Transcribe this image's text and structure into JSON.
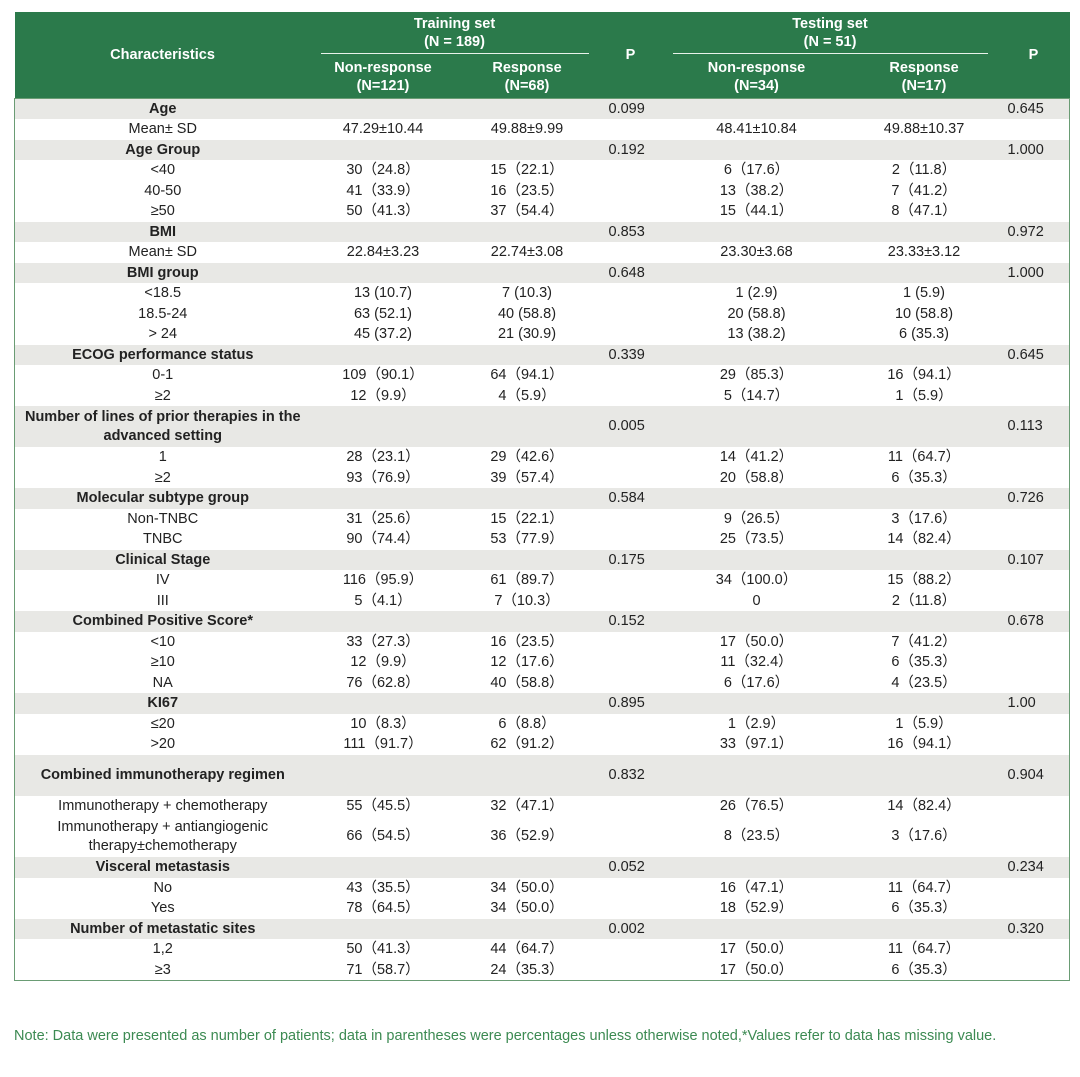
{
  "header": {
    "characteristics": "Characteristics",
    "training_set": "Training set",
    "training_n": "(N = 189)",
    "testing_set": "Testing set",
    "testing_n": "(N = 51)",
    "p": "P",
    "train_nr": "Non-response",
    "train_nr_n": "(N=121)",
    "train_r": "Response",
    "train_r_n": "(N=68)",
    "test_nr": "Non-response",
    "test_nr_n": "(N=34)",
    "test_r": "Response",
    "test_r_n": "(N=17)"
  },
  "colors": {
    "header_bg": "#2b7a4b",
    "group_bg": "#e8e8e5",
    "note": "#3c8a52"
  },
  "rows": [
    {
      "g": 1,
      "label": "Age",
      "c": [
        "",
        "",
        "0.099",
        "",
        "",
        "0.645"
      ]
    },
    {
      "label": "Mean± SD",
      "c": [
        "47.29±10.44",
        "49.88±9.99",
        "",
        "48.41±10.84",
        "49.88±10.37",
        ""
      ]
    },
    {
      "g": 1,
      "label": "Age Group",
      "c": [
        "",
        "",
        "0.192",
        "",
        "",
        "1.000"
      ]
    },
    {
      "label": "<40",
      "c": [
        "30（24.8）",
        "15（22.1）",
        "",
        "6（17.6）",
        "2（11.8）",
        ""
      ]
    },
    {
      "label": "40-50",
      "c": [
        "41（33.9）",
        "16（23.5）",
        "",
        "13（38.2）",
        "7（41.2）",
        ""
      ]
    },
    {
      "label": "≥50",
      "c": [
        "50（41.3）",
        "37（54.4）",
        "",
        "15（44.1）",
        "8（47.1）",
        ""
      ]
    },
    {
      "g": 1,
      "label": "BMI",
      "c": [
        "",
        "",
        "0.853",
        "",
        "",
        "0.972"
      ]
    },
    {
      "label": "Mean± SD",
      "c": [
        "22.84±3.23",
        "22.74±3.08",
        "",
        "23.30±3.68",
        "23.33±3.12",
        ""
      ]
    },
    {
      "g": 1,
      "label": "BMI group",
      "c": [
        "",
        "",
        "0.648",
        "",
        "",
        "1.000"
      ]
    },
    {
      "label": "<18.5",
      "c": [
        "13 (10.7)",
        "7 (10.3)",
        "",
        "1 (2.9)",
        "1 (5.9)",
        ""
      ]
    },
    {
      "label": "18.5-24",
      "c": [
        "63 (52.1)",
        "40 (58.8)",
        "",
        "20 (58.8)",
        "10 (58.8)",
        ""
      ]
    },
    {
      "label": "> 24",
      "c": [
        "45 (37.2)",
        "21 (30.9)",
        "",
        "13 (38.2)",
        "6 (35.3)",
        ""
      ]
    },
    {
      "g": 1,
      "label": "ECOG performance status",
      "c": [
        "",
        "",
        "0.339",
        "",
        "",
        "0.645"
      ]
    },
    {
      "label": "0-1",
      "c": [
        "109（90.1）",
        "64（94.1）",
        "",
        "29（85.3）",
        "16（94.1）",
        ""
      ]
    },
    {
      "label": "≥2",
      "c": [
        "12（9.9）",
        "4（5.9）",
        "",
        "5（14.7）",
        "1（5.9）",
        ""
      ]
    },
    {
      "g": 1,
      "d": 1,
      "label": "Number of lines of prior therapies in the advanced setting",
      "c": [
        "",
        "",
        "0.005",
        "",
        "",
        "0.113"
      ]
    },
    {
      "label": "1",
      "c": [
        "28（23.1）",
        "29（42.6）",
        "",
        "14（41.2）",
        "11（64.7）",
        ""
      ]
    },
    {
      "label": "≥2",
      "c": [
        "93（76.9）",
        "39（57.4）",
        "",
        "20（58.8）",
        "6（35.3）",
        ""
      ]
    },
    {
      "g": 1,
      "label": "Molecular subtype group",
      "c": [
        "",
        "",
        "0.584",
        "",
        "",
        "0.726"
      ]
    },
    {
      "label": "Non-TNBC",
      "c": [
        "31（25.6）",
        "15（22.1）",
        "",
        "9（26.5）",
        "3（17.6）",
        ""
      ]
    },
    {
      "label": "TNBC",
      "c": [
        "90（74.4）",
        "53（77.9）",
        "",
        "25（73.5）",
        "14（82.4）",
        ""
      ]
    },
    {
      "g": 1,
      "label": "Clinical Stage",
      "c": [
        "",
        "",
        "0.175",
        "",
        "",
        "0.107"
      ]
    },
    {
      "label": "IV",
      "c": [
        "116（95.9）",
        "61（89.7）",
        "",
        "34（100.0）",
        "15（88.2）",
        ""
      ]
    },
    {
      "label": "III",
      "c": [
        "5（4.1）",
        "7（10.3）",
        "",
        "0",
        "2（11.8）",
        ""
      ]
    },
    {
      "g": 1,
      "label": "Combined Positive Score*",
      "c": [
        "",
        "",
        "0.152",
        "",
        "",
        "0.678"
      ]
    },
    {
      "label": "<10",
      "c": [
        "33（27.3）",
        "16（23.5）",
        "",
        "17（50.0）",
        "7（41.2）",
        ""
      ]
    },
    {
      "label": "≥10",
      "c": [
        "12（9.9）",
        "12（17.6）",
        "",
        "11（32.4）",
        "6（35.3）",
        ""
      ]
    },
    {
      "label": "NA",
      "c": [
        "76（62.8）",
        "40（58.8）",
        "",
        "6（17.6）",
        "4（23.5）",
        ""
      ]
    },
    {
      "g": 1,
      "label": "KI67",
      "c": [
        "",
        "",
        "0.895",
        "",
        "",
        "1.00"
      ]
    },
    {
      "label": "≤20",
      "c": [
        "10（8.3）",
        "6（8.8）",
        "",
        "1（2.9）",
        "1（5.9）",
        ""
      ]
    },
    {
      "label": ">20",
      "c": [
        "111（91.7）",
        "62（91.2）",
        "",
        "33（97.1）",
        "16（94.1）",
        ""
      ]
    },
    {
      "g": 1,
      "d": 1,
      "label": "Combined immunotherapy regimen",
      "c": [
        "",
        "",
        "0.832",
        "",
        "",
        "0.904"
      ]
    },
    {
      "label": "Immunotherapy + chemotherapy",
      "c": [
        "55（45.5）",
        "32（47.1）",
        "",
        "26（76.5）",
        "14（82.4）",
        ""
      ]
    },
    {
      "d": 1,
      "label": "Immunotherapy + antiangiogenic therapy±chemotherapy",
      "c": [
        "66（54.5）",
        "36（52.9）",
        "",
        "8（23.5）",
        "3（17.6）",
        ""
      ]
    },
    {
      "g": 1,
      "label": "Visceral metastasis",
      "c": [
        "",
        "",
        "0.052",
        "",
        "",
        "0.234"
      ]
    },
    {
      "label": "No",
      "c": [
        "43（35.5）",
        "34（50.0）",
        "",
        "16（47.1）",
        "11（64.7）",
        ""
      ]
    },
    {
      "label": "Yes",
      "c": [
        "78（64.5）",
        "34（50.0）",
        "",
        "18（52.9）",
        "6（35.3）",
        ""
      ]
    },
    {
      "g": 1,
      "label": "Number of metastatic sites",
      "c": [
        "",
        "",
        "0.002",
        "",
        "",
        "0.320"
      ]
    },
    {
      "label": "1,2",
      "c": [
        "50（41.3）",
        "44（64.7）",
        "",
        "17（50.0）",
        "11（64.7）",
        ""
      ]
    },
    {
      "label": "≥3",
      "c": [
        "71（58.7）",
        "24（35.3）",
        "",
        "17（50.0）",
        "6（35.3）",
        ""
      ]
    }
  ],
  "note": "Note: Data were presented as number of patients; data in parentheses were percentages unless otherwise noted,*Values refer to data has missing value."
}
